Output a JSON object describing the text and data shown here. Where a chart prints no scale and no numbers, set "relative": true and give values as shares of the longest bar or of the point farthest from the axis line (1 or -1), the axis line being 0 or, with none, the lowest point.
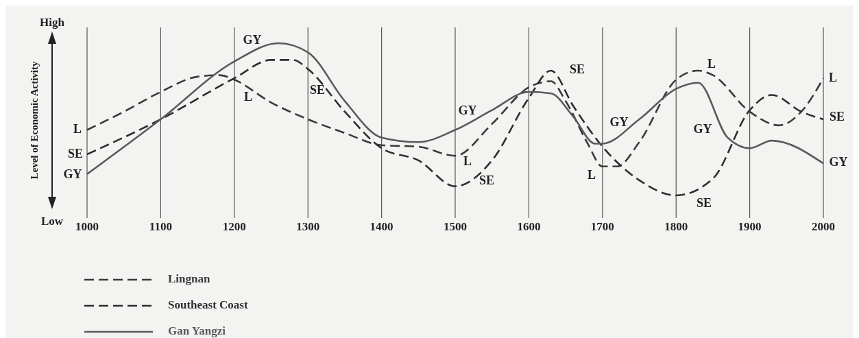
{
  "chart_data": {
    "type": "line",
    "relative": true,
    "ylabel": "Level of Economic Activity",
    "xlim": [
      1000,
      2000
    ],
    "xticks": [
      1000,
      1100,
      1200,
      1300,
      1400,
      1500,
      1600,
      1700,
      1800,
      1900,
      2000
    ],
    "grid": "x",
    "legend": "bottom left",
    "series": [
      {
        "name": "Lingnan",
        "color": "#3a3a3a",
        "line_style": "dashed",
        "x": [
          1000,
          1050,
          1100,
          1150,
          1180,
          1200,
          1250,
          1300,
          1350,
          1400,
          1450,
          1500,
          1550,
          1600,
          1630,
          1650,
          1680,
          1700,
          1720,
          1750,
          1800,
          1830,
          1850,
          1900,
          1940,
          1970,
          2000
        ],
        "values": [
          0.43,
          0.55,
          0.68,
          0.78,
          0.79,
          0.76,
          0.61,
          0.5,
          0.41,
          0.33,
          0.32,
          0.26,
          0.47,
          0.71,
          0.75,
          0.62,
          0.34,
          0.19,
          0.19,
          0.35,
          0.76,
          0.82,
          0.79,
          0.55,
          0.46,
          0.55,
          0.77
        ]
      },
      {
        "name": "Southeast Coast",
        "color": "#2e2e2e",
        "line_style": "dashed",
        "x": [
          1000,
          1100,
          1200,
          1250,
          1280,
          1300,
          1350,
          1400,
          1450,
          1500,
          1550,
          1600,
          1630,
          1660,
          1700,
          1750,
          1800,
          1850,
          1900,
          1930,
          1970,
          2000
        ],
        "values": [
          0.27,
          0.5,
          0.77,
          0.89,
          0.89,
          0.83,
          0.55,
          0.31,
          0.23,
          0.06,
          0.23,
          0.64,
          0.82,
          0.59,
          0.32,
          0.1,
          0,
          0.11,
          0.56,
          0.66,
          0.55,
          0.5
        ]
      },
      {
        "name": "Gan Yangzi",
        "color": "#5a5a5a",
        "line_style": "solid",
        "x": [
          1000,
          1100,
          1200,
          1260,
          1300,
          1350,
          1400,
          1450,
          1500,
          1550,
          1600,
          1630,
          1660,
          1690,
          1700,
          1750,
          1800,
          1830,
          1870,
          1900,
          1930,
          2000
        ],
        "values": [
          0.14,
          0.5,
          0.88,
          1,
          0.94,
          0.62,
          0.38,
          0.35,
          0.43,
          0.56,
          0.68,
          0.67,
          0.52,
          0.34,
          0.34,
          0.5,
          0.7,
          0.74,
          0.38,
          0.31,
          0.36,
          0.21
        ]
      }
    ],
    "annotations": [
      "High",
      "Low",
      "L",
      "SE",
      "GY",
      "GY",
      "L",
      "SE",
      "GY",
      "L",
      "SE",
      "SE",
      "GY",
      "L",
      "SE",
      "L",
      "GY",
      "L",
      "SE",
      "GY"
    ]
  }
}
